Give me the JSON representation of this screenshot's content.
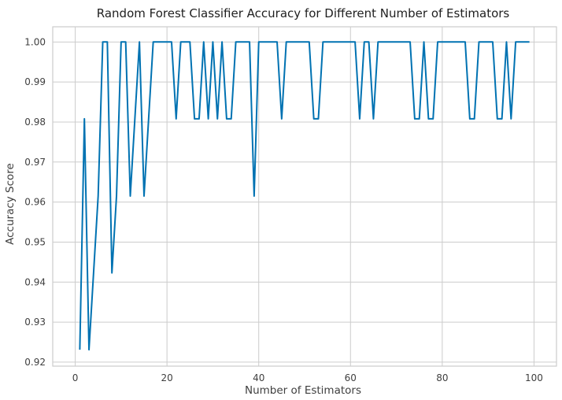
{
  "chart_data": {
    "type": "line",
    "title": "Random Forest Classifier Accuracy for Different Number of Estimators",
    "xlabel": "Number of Estimators",
    "ylabel": "Accuracy Score",
    "xlim": [
      -4.9,
      104.9
    ],
    "ylim": [
      0.919,
      1.0038
    ],
    "xticks": [
      0,
      20,
      40,
      60,
      80,
      100
    ],
    "xtick_labels": [
      "0",
      "20",
      "40",
      "60",
      "80",
      "100"
    ],
    "yticks": [
      0.92,
      0.93,
      0.94,
      0.95,
      0.96,
      0.97,
      0.98,
      0.99,
      1.0
    ],
    "ytick_labels": [
      "0.92",
      "0.93",
      "0.94",
      "0.95",
      "0.96",
      "0.97",
      "0.98",
      "0.99",
      "1.00"
    ],
    "grid": true,
    "line_color": "#0072b2",
    "grid_color": "#cccccc",
    "series": [
      {
        "x": [
          1,
          2,
          3,
          4,
          5,
          6,
          7,
          8,
          9,
          10,
          11,
          12,
          13,
          14,
          15,
          16,
          17,
          18,
          19,
          20,
          21,
          22,
          23,
          24,
          25,
          26,
          27,
          28,
          29,
          30,
          31,
          32,
          33,
          34,
          35,
          36,
          37,
          38,
          39,
          40,
          41,
          42,
          43,
          44,
          45,
          46,
          47,
          48,
          49,
          50,
          51,
          52,
          53,
          54,
          55,
          56,
          57,
          58,
          59,
          60,
          61,
          62,
          63,
          64,
          65,
          66,
          67,
          68,
          69,
          70,
          71,
          72,
          73,
          74,
          75,
          76,
          77,
          78,
          79,
          80,
          81,
          82,
          83,
          84,
          85,
          86,
          87,
          88,
          89,
          90,
          91,
          92,
          93,
          94,
          95,
          96,
          97,
          98,
          99
        ],
        "values": [
          0.9231,
          0.9808,
          0.9231,
          0.9423,
          0.9615,
          1.0,
          1.0,
          0.9423,
          0.9615,
          1.0,
          1.0,
          0.9615,
          0.9808,
          1.0,
          0.9615,
          0.9808,
          1.0,
          1.0,
          1.0,
          1.0,
          1.0,
          0.9808,
          1.0,
          1.0,
          1.0,
          0.9808,
          0.9808,
          1.0,
          0.9808,
          1.0,
          0.9808,
          1.0,
          0.9808,
          0.9808,
          1.0,
          1.0,
          1.0,
          1.0,
          0.9615,
          1.0,
          1.0,
          1.0,
          1.0,
          1.0,
          0.9808,
          1.0,
          1.0,
          1.0,
          1.0,
          1.0,
          1.0,
          0.9808,
          0.9808,
          1.0,
          1.0,
          1.0,
          1.0,
          1.0,
          1.0,
          1.0,
          1.0,
          0.9808,
          1.0,
          1.0,
          0.9808,
          1.0,
          1.0,
          1.0,
          1.0,
          1.0,
          1.0,
          1.0,
          1.0,
          0.9808,
          0.9808,
          1.0,
          0.9808,
          0.9808,
          1.0,
          1.0,
          1.0,
          1.0,
          1.0,
          1.0,
          1.0,
          0.9808,
          0.9808,
          1.0,
          1.0,
          1.0,
          1.0,
          0.9808,
          0.9808,
          1.0,
          0.9808,
          1.0,
          1.0,
          1.0,
          1.0
        ]
      }
    ]
  }
}
